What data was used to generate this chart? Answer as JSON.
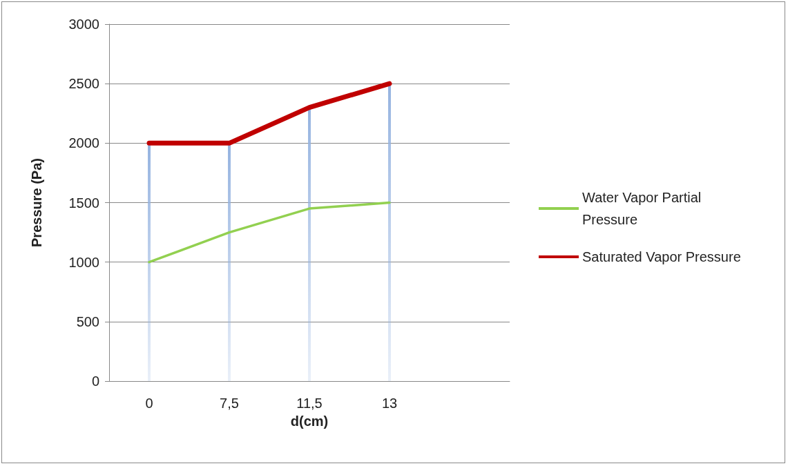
{
  "chart_data": {
    "type": "line",
    "xlabel": "d(cm)",
    "ylabel": "Pressure (Pa)",
    "categories": [
      "0",
      "7,5",
      "11,5",
      "13",
      null
    ],
    "series": [
      {
        "type": "bar",
        "color": "#95b3e0",
        "values": [
          2000,
          2000,
          2300,
          2500,
          null
        ]
      },
      {
        "name": "Water Vapor Partial Pressure",
        "color": "#92d050",
        "values": [
          1000,
          1250,
          1450,
          1500,
          null
        ]
      },
      {
        "name": "Saturated Vapor Pressure",
        "color": "#c00000",
        "values": [
          2000,
          2000,
          2300,
          2500,
          null
        ]
      }
    ],
    "ylim": [
      0,
      3000
    ],
    "yticks": [
      0,
      500,
      1000,
      1500,
      2000,
      2500,
      3000
    ],
    "grid": "y",
    "legend": "right",
    "marker": "none",
    "line_style": "solid"
  }
}
